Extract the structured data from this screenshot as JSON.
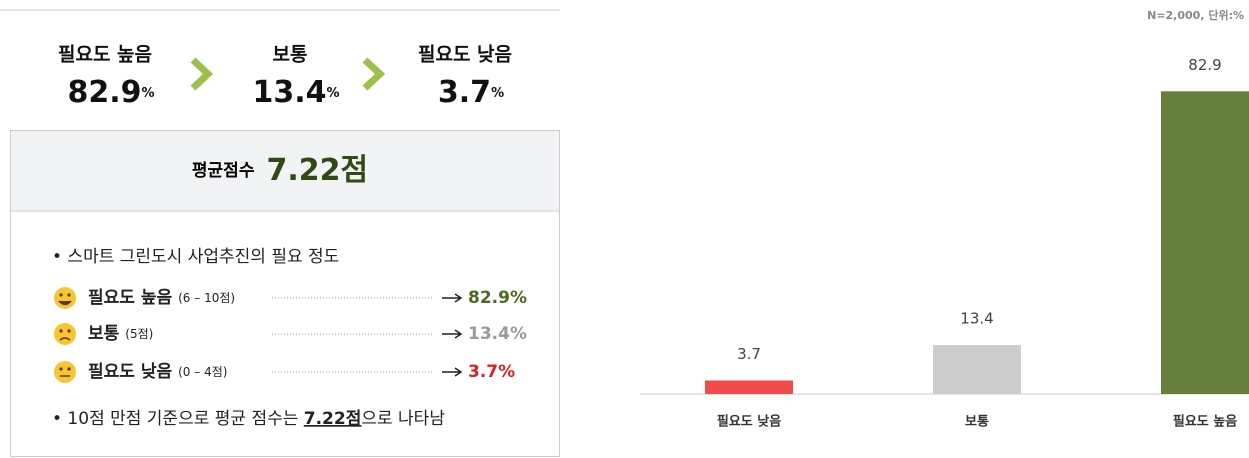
{
  "summary": {
    "items": [
      {
        "label": "필요도 높음",
        "value": "82.9",
        "unit": "%"
      },
      {
        "label": "보통",
        "value": "13.4",
        "unit": "%"
      },
      {
        "label": "필요도 낮음",
        "value": "3.7",
        "unit": "%"
      }
    ],
    "average": {
      "label": "평균점수",
      "value": "7.22점"
    },
    "heading": "• 스마트 그린도시 사업추진의 필요 정도",
    "list": [
      {
        "label": "필요도 높음",
        "range": "(6 – 10점)",
        "result": "82.9%",
        "color": "#4a6a1f"
      },
      {
        "label": "보통",
        "range": "(5점)",
        "result": "13.4%",
        "color": "#9a9a9a"
      },
      {
        "label": "필요도 낮음",
        "range": "(0 – 4점)",
        "result": "3.7%",
        "color": "#e02020"
      }
    ],
    "sentence": {
      "before": "• 10점 만점 기준으로 평균 점수는 ",
      "highlight": "7.22점",
      "after": "으로 나타남"
    }
  },
  "chart_data": {
    "type": "bar",
    "note": "N=2,000, 단위:%",
    "categories": [
      "필요도 낮음",
      "보통",
      "필요도 높음"
    ],
    "values": [
      3.7,
      13.4,
      82.9
    ],
    "colors": [
      "#ef4b4b",
      "#cccccc",
      "#667f3a"
    ],
    "ylim": [
      0,
      86
    ]
  }
}
